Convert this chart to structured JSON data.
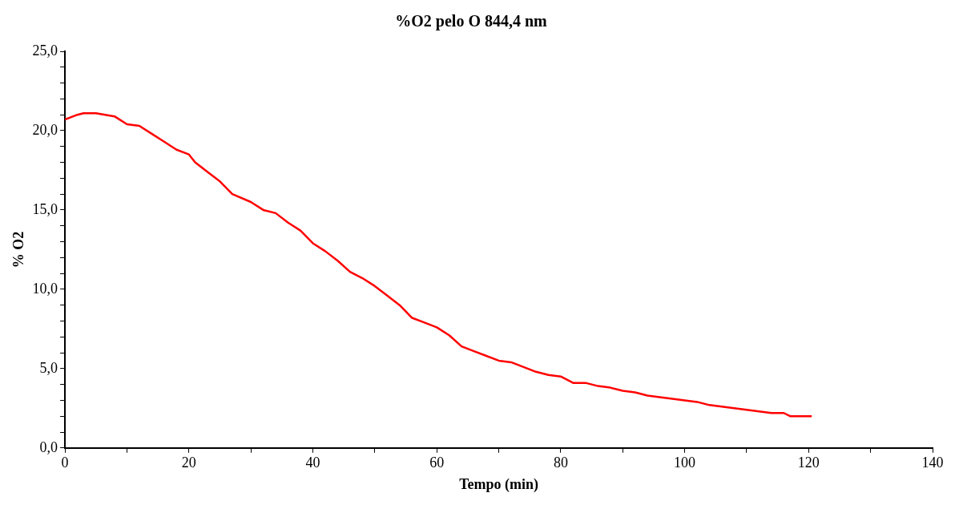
{
  "chart_data": {
    "type": "line",
    "title": "%O2 pelo O 844,4 nm",
    "xlabel": "Tempo (min)",
    "ylabel": "% O2",
    "x": [
      0,
      2,
      3,
      5,
      8,
      10,
      12,
      14,
      16,
      18,
      20,
      21,
      23,
      25,
      27,
      30,
      32,
      34,
      36,
      38,
      40,
      42,
      44,
      46,
      48,
      50,
      52,
      54,
      56,
      58,
      60,
      62,
      64,
      66,
      68,
      70,
      72,
      74,
      76,
      78,
      80,
      82,
      84,
      86,
      88,
      90,
      92,
      94,
      96,
      98,
      100,
      102,
      104,
      106,
      108,
      110,
      112,
      114,
      116,
      117,
      119,
      120.5
    ],
    "series": [
      {
        "color": "#ff0000",
        "values": [
          20.7,
          21.0,
          21.1,
          21.1,
          20.9,
          20.4,
          20.3,
          19.8,
          19.3,
          18.8,
          18.5,
          18.0,
          17.4,
          16.8,
          16.0,
          15.5,
          15.0,
          14.8,
          14.2,
          13.7,
          12.9,
          12.4,
          11.8,
          11.1,
          10.7,
          10.2,
          9.6,
          9.0,
          8.2,
          7.9,
          7.6,
          7.1,
          6.4,
          6.1,
          5.8,
          5.5,
          5.4,
          5.1,
          4.8,
          4.6,
          4.5,
          4.1,
          4.1,
          3.9,
          3.8,
          3.6,
          3.5,
          3.3,
          3.2,
          3.1,
          3.0,
          2.9,
          2.7,
          2.6,
          2.5,
          2.4,
          2.3,
          2.2,
          2.2,
          2.0,
          2.0,
          2.0
        ]
      }
    ],
    "xlim": [
      0,
      140
    ],
    "xticks": [
      0,
      {
        "value": 10,
        "label": null
      },
      20,
      {
        "value": 30,
        "label": null
      },
      40,
      {
        "value": 50,
        "label": null
      },
      60,
      {
        "value": 70,
        "label": null
      },
      80,
      {
        "value": 90,
        "label": null
      },
      100,
      {
        "value": 110,
        "label": null
      },
      120,
      {
        "value": 130,
        "label": null
      },
      140
    ],
    "ylim": [
      0,
      25
    ],
    "yticks": [
      {
        "value": 0,
        "label": "0,0"
      },
      {
        "value": 1,
        "label": null
      },
      {
        "value": 2,
        "label": null
      },
      {
        "value": 3,
        "label": null
      },
      {
        "value": 4,
        "label": null
      },
      {
        "value": 5,
        "label": "5,0"
      },
      {
        "value": 6,
        "label": null
      },
      {
        "value": 7,
        "label": null
      },
      {
        "value": 8,
        "label": null
      },
      {
        "value": 9,
        "label": null
      },
      {
        "value": 10,
        "label": "10,0"
      },
      {
        "value": 11,
        "label": null
      },
      {
        "value": 12,
        "label": null
      },
      {
        "value": 13,
        "label": null
      },
      {
        "value": 14,
        "label": null
      },
      {
        "value": 15,
        "label": "15,0"
      },
      {
        "value": 16,
        "label": null
      },
      {
        "value": 17,
        "label": null
      },
      {
        "value": 18,
        "label": null
      },
      {
        "value": 19,
        "label": null
      },
      {
        "value": 20,
        "label": "20,0"
      },
      {
        "value": 21,
        "label": null
      },
      {
        "value": 22,
        "label": null
      },
      {
        "value": 23,
        "label": null
      },
      {
        "value": 24,
        "label": null
      },
      {
        "value": 25,
        "label": "25,0"
      }
    ],
    "grid": false,
    "legend": false,
    "marker": "none",
    "line_style": "solid"
  }
}
